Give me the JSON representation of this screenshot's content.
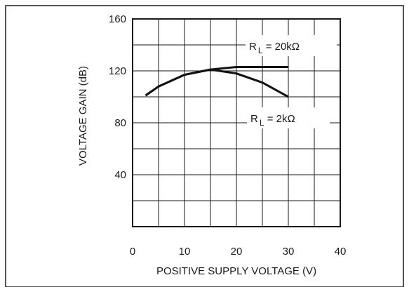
{
  "chart_data": {
    "type": "line",
    "title": "",
    "xlabel": "POSITIVE SUPPLY VOLTAGE (V)",
    "ylabel": "VOLTAGE GAIN (dB)",
    "xlim": [
      0,
      40
    ],
    "ylim": [
      0,
      160
    ],
    "x_ticks": [
      0,
      10,
      20,
      30,
      40
    ],
    "y_ticks": [
      40,
      80,
      120,
      160
    ],
    "grid": true,
    "legend": "inline labels",
    "series": [
      {
        "label_prefix": "R",
        "label_sub": "L",
        "label_suffix": " = 20kΩ",
        "x": [
          2.5,
          5,
          10,
          15,
          20,
          25,
          30
        ],
        "y": [
          101,
          108,
          117,
          121,
          123,
          123,
          123
        ]
      },
      {
        "label_prefix": "R",
        "label_sub": "L",
        "label_suffix": " = 2kΩ",
        "x": [
          2.5,
          5,
          10,
          15,
          20,
          25,
          30
        ],
        "y": [
          101,
          108,
          117,
          121,
          118,
          111,
          100
        ]
      }
    ],
    "colors": {
      "curve": "#111111",
      "grid": "#1a1a1a",
      "frame": "#1a1a1a"
    }
  }
}
